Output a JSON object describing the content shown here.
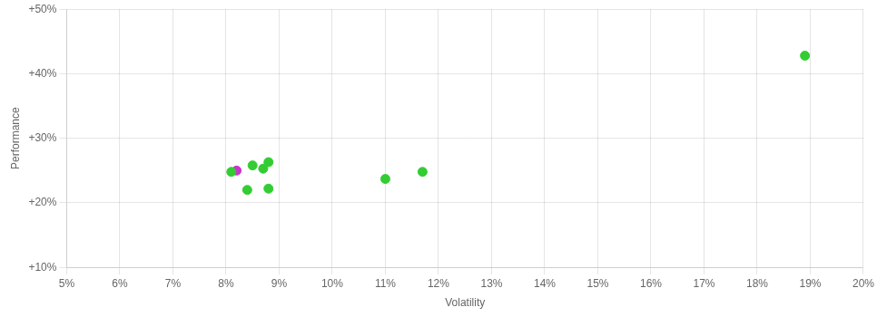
{
  "chart_data": {
    "type": "scatter",
    "xlabel": "Volatility",
    "ylabel": "Performance",
    "series": [
      {
        "color": "#33cc33",
        "x": [
          0.081,
          0.085,
          0.088,
          0.087,
          0.084,
          0.088,
          0.11,
          0.117,
          0.189
        ],
        "values": [
          0.248,
          0.258,
          0.263,
          0.253,
          0.22,
          0.222,
          0.237,
          0.248,
          0.428
        ]
      },
      {
        "color": "#cc33cc",
        "x": [
          0.082
        ],
        "values": [
          0.25
        ]
      }
    ],
    "xlim": [
      0.05,
      0.2
    ],
    "ylim": [
      0.1,
      0.5
    ],
    "xticks": [
      {
        "value": 0.05,
        "label": "5%"
      },
      {
        "value": 0.06,
        "label": "6%"
      },
      {
        "value": 0.07,
        "label": "7%"
      },
      {
        "value": 0.08,
        "label": "8%"
      },
      {
        "value": 0.09,
        "label": "9%"
      },
      {
        "value": 0.1,
        "label": "10%"
      },
      {
        "value": 0.11,
        "label": "11%"
      },
      {
        "value": 0.12,
        "label": "12%"
      },
      {
        "value": 0.13,
        "label": "13%"
      },
      {
        "value": 0.14,
        "label": "14%"
      },
      {
        "value": 0.15,
        "label": "15%"
      },
      {
        "value": 0.16,
        "label": "16%"
      },
      {
        "value": 0.17,
        "label": "17%"
      },
      {
        "value": 0.18,
        "label": "18%"
      },
      {
        "value": 0.19,
        "label": "19%"
      },
      {
        "value": 0.2,
        "label": "20%"
      }
    ],
    "yticks": [
      {
        "value": 0.1,
        "label": "+10%"
      },
      {
        "value": 0.2,
        "label": "+20%"
      },
      {
        "value": 0.3,
        "label": "+30%"
      },
      {
        "value": 0.4,
        "label": "+40%"
      },
      {
        "value": 0.5,
        "label": "+50%"
      }
    ],
    "grid": true
  }
}
